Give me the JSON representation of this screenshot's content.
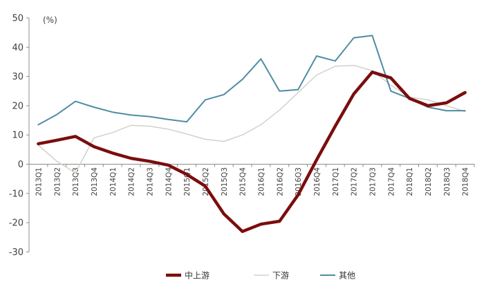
{
  "chart_data": {
    "type": "line",
    "unit_label": "(%)",
    "ylim": [
      -30,
      50
    ],
    "yticks": [
      50,
      40,
      30,
      20,
      10,
      0,
      -10,
      -20,
      -30
    ],
    "grid": false,
    "legend_position": "bottom",
    "categories": [
      "2013Q1",
      "2013Q2",
      "2013Q3",
      "2013Q4",
      "2014Q1",
      "2014Q2",
      "2014Q3",
      "2014Q4",
      "2015Q1",
      "2015Q2",
      "2015Q3",
      "2015Q4",
      "2016Q1",
      "2016Q2",
      "2016Q3",
      "2016Q4",
      "2017Q1",
      "2017Q2",
      "2017Q3",
      "2017Q4",
      "2018Q1",
      "2018Q2",
      "2018Q3",
      "2018Q4"
    ],
    "series": [
      {
        "name": "中上游",
        "color": "#7B0D0D",
        "width": 4.5,
        "values": [
          7,
          8.2,
          9.5,
          6,
          3.8,
          2,
          1,
          -0.3,
          -3.5,
          -7.5,
          -17,
          -23,
          -20.5,
          -19.5,
          -10.5,
          1.5,
          13,
          24,
          31.5,
          29.5,
          22.5,
          20,
          21,
          24.5
        ]
      },
      {
        "name": "下游",
        "color": "#D2D2C9",
        "width": 1.5,
        "values": [
          6.5,
          1,
          -3,
          9,
          10.8,
          13.3,
          13,
          12,
          10.3,
          8.5,
          7.8,
          10,
          13.5,
          18.5,
          24.5,
          30.5,
          33.5,
          33.8,
          32,
          27,
          23,
          22,
          20,
          18
        ]
      },
      {
        "name": "其他",
        "color": "#4E8CA3",
        "width": 2,
        "values": [
          13.5,
          17,
          21.5,
          19.5,
          17.8,
          16.8,
          16.3,
          15.3,
          14.5,
          22,
          23.8,
          29,
          36,
          25,
          25.5,
          37,
          35.3,
          43.2,
          44,
          25,
          22.5,
          19.5,
          18.3,
          18.3
        ]
      }
    ]
  }
}
